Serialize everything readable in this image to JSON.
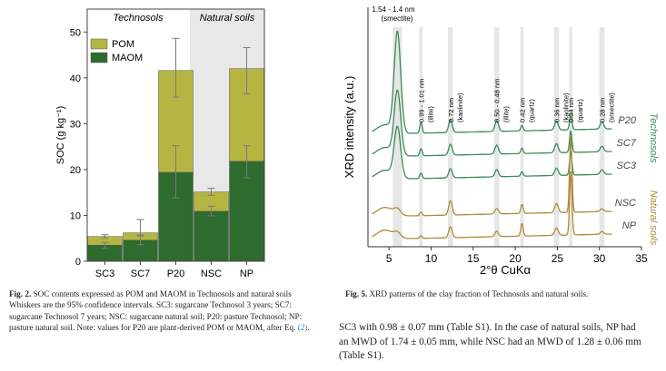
{
  "chart_data": [
    {
      "type": "bar",
      "stacked": true,
      "groups": [
        {
          "label": "Technosols",
          "categories": [
            "SC3",
            "SC7",
            "P20"
          ]
        },
        {
          "label": "Natural soils",
          "categories": [
            "NSC",
            "NP"
          ]
        }
      ],
      "categories": [
        "SC3",
        "SC7",
        "P20",
        "NSC",
        "NP"
      ],
      "series": [
        {
          "name": "MAOM",
          "color": "#2e6b2e",
          "values": [
            3.5,
            4.6,
            19.4,
            10.9,
            21.8
          ],
          "err_low": [
            2.8,
            3.6,
            13.8,
            9.9,
            18.2
          ],
          "err_high": [
            4.1,
            5.7,
            25.2,
            12.0,
            25.2
          ]
        },
        {
          "name": "POM",
          "color": "#b5b542",
          "values": [
            1.9,
            1.6,
            22.2,
            4.2,
            20.2
          ],
          "err_low": [
            5.0,
            5.5,
            35.8,
            14.4,
            36.5
          ],
          "err_high": [
            5.8,
            9.1,
            48.6,
            15.9,
            46.6
          ]
        }
      ],
      "ylabel": "SOC (g kg⁻¹)",
      "ylim": [
        0,
        55
      ],
      "yticks": [
        0,
        10,
        20,
        30,
        40,
        50
      ],
      "legend": "top-left"
    },
    {
      "type": "line",
      "xlabel": "2°θ CuKα",
      "ylabel": "XRD intensity (a.u.)",
      "xlim": [
        2.5,
        35
      ],
      "xticks": [
        5,
        10,
        15,
        20,
        25,
        30,
        35
      ],
      "grid": false,
      "peaks": [
        {
          "x": 6.0,
          "label": "1.54 - 1.4 nm",
          "sub": "(smectite)"
        },
        {
          "x": 8.8,
          "label": "0.99 - 1.01 nm",
          "sub": "(illite)"
        },
        {
          "x": 12.3,
          "label": "0.72 nm",
          "sub": "(kaolinite)"
        },
        {
          "x": 17.8,
          "label": "0.50 - 0.48 nm",
          "sub": "(illite)"
        },
        {
          "x": 20.8,
          "label": "0.42 nm",
          "sub": "(quartz)"
        },
        {
          "x": 24.9,
          "label": "0.36 nm",
          "sub": "(kaolinite)"
        },
        {
          "x": 26.6,
          "label": "0.34 nm",
          "sub": "(quartz)"
        },
        {
          "x": 30.3,
          "label": "0.28 nm",
          "sub": "(smectite)"
        }
      ],
      "series": [
        {
          "name": "P20",
          "group": "Technosols",
          "color": "#3a8a5a"
        },
        {
          "name": "SC7",
          "group": "Technosols",
          "color": "#3a8a5a"
        },
        {
          "name": "SC3",
          "group": "Technosols",
          "color": "#3a8a5a"
        },
        {
          "name": "NSC",
          "group": "Natural soils",
          "color": "#b08a3a"
        },
        {
          "name": "NP",
          "group": "Natural soils",
          "color": "#b08a3a"
        }
      ],
      "group_labels": [
        "Technosols",
        "Natural soils"
      ]
    }
  ],
  "captions": {
    "fig2_label": "Fig. 2.",
    "fig2_text": " SOC contents expressed as POM and MAOM in Technosols and natural soils Whiskers are the 95% confidence intervals. SC3: sugarcane Technosol 3 years; SC7: sugarcane Technosol 7 years; NSC: sugarcane natural soil; P20: pasture Technosol; NP: pasture natural soil. Note: values for P20 are plant-derived POM or MAOM, after Eq. ",
    "fig2_link": "(2)",
    "fig2_end": ".",
    "fig5_label": "Fig. 5.",
    "fig5_text": " XRD patterns of the clay fraction of Technosols and natural soils."
  },
  "body_text": {
    "line1": "SC3 with 0.98 ± 0.07 mm (Table S1). In the case of natural soils, NP had",
    "line2": "an MWD of 1.74 ± 0.05 mm, while NSC had an MWD of 1.28 ± 0.06 mm",
    "line3": "(Table S1)."
  }
}
